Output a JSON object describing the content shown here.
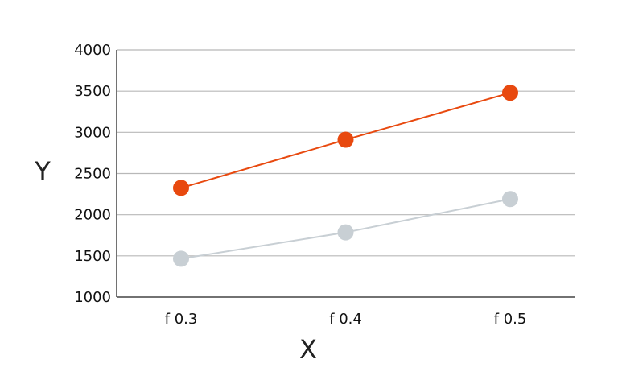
{
  "chart_data": {
    "type": "line",
    "categories": [
      "f 0.3",
      "f 0.4",
      "f 0.5"
    ],
    "series": [
      {
        "values": [
          2325,
          2910,
          3480
        ],
        "color": "#e8490f"
      },
      {
        "values": [
          1465,
          1785,
          2190
        ],
        "color": "#c8cfd4"
      }
    ],
    "xlabel": "X",
    "ylabel": "Y",
    "ylim": [
      1000,
      4000
    ],
    "yticks": [
      1000,
      1500,
      2000,
      2500,
      3000,
      3500,
      4000
    ],
    "grid": "horizontal",
    "gridline_color": "#b8b8b8",
    "legend": "none"
  }
}
